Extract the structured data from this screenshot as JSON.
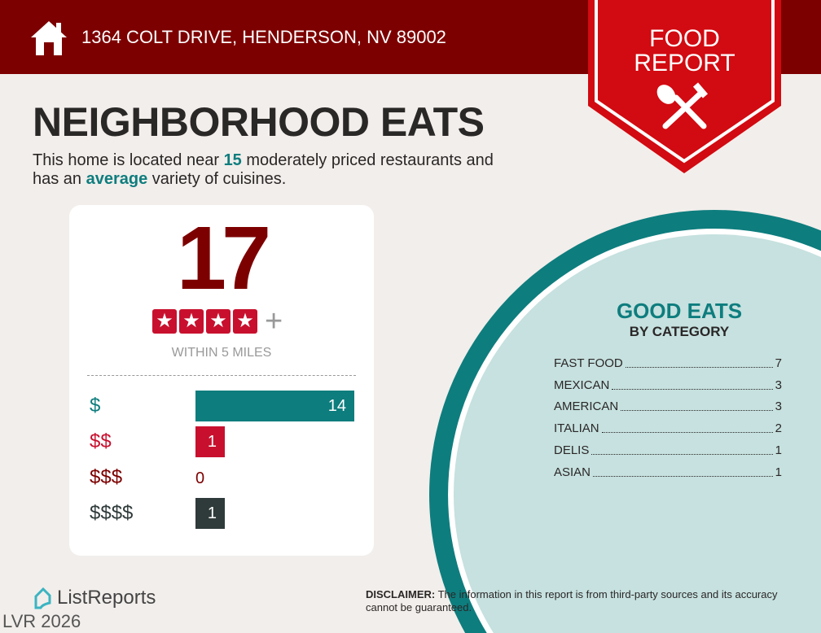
{
  "header": {
    "address": "1364 COLT DRIVE, HENDERSON, NV 89002",
    "badge_line1": "FOOD",
    "badge_line2": "REPORT"
  },
  "title": "NEIGHBORHOOD EATS",
  "summary": {
    "t1": "This home is located near ",
    "count": "15",
    "t2": " moderately priced restaurants and",
    "t3": "has an ",
    "variety": "average",
    "t4": " variety of cuisines."
  },
  "card": {
    "total": "17",
    "star_rating": 4,
    "plus": "+",
    "within": "WITHIN 5 MILES",
    "price_levels": [
      {
        "label": "$",
        "value": 14,
        "color": "#0e7d7e"
      },
      {
        "label": "$$",
        "value": 1,
        "color": "#c8102e"
      },
      {
        "label": "$$$",
        "value": 0,
        "color": "#7d0000"
      },
      {
        "label": "$$$$",
        "value": 1,
        "color": "#2f3a3a"
      }
    ]
  },
  "good_eats": {
    "title": "GOOD EATS",
    "subtitle": "BY CATEGORY",
    "categories": [
      {
        "name": "FAST FOOD",
        "count": "7"
      },
      {
        "name": "MEXICAN",
        "count": "3"
      },
      {
        "name": "AMERICAN",
        "count": "3"
      },
      {
        "name": "ITALIAN",
        "count": "2"
      },
      {
        "name": "DELIS",
        "count": "1"
      },
      {
        "name": "ASIAN",
        "count": "1"
      }
    ]
  },
  "footer": {
    "brand": "ListReports",
    "watermark": "LVR 2026",
    "disclaimer_label": "DISCLAIMER:",
    "disclaimer": " The information in this report is from third-party sources and its accuracy cannot be guaranteed."
  },
  "colors": {
    "header": "#7d0000",
    "badge": "#d20a11",
    "teal": "#0e7d7e",
    "light_teal": "#c6e1df"
  }
}
